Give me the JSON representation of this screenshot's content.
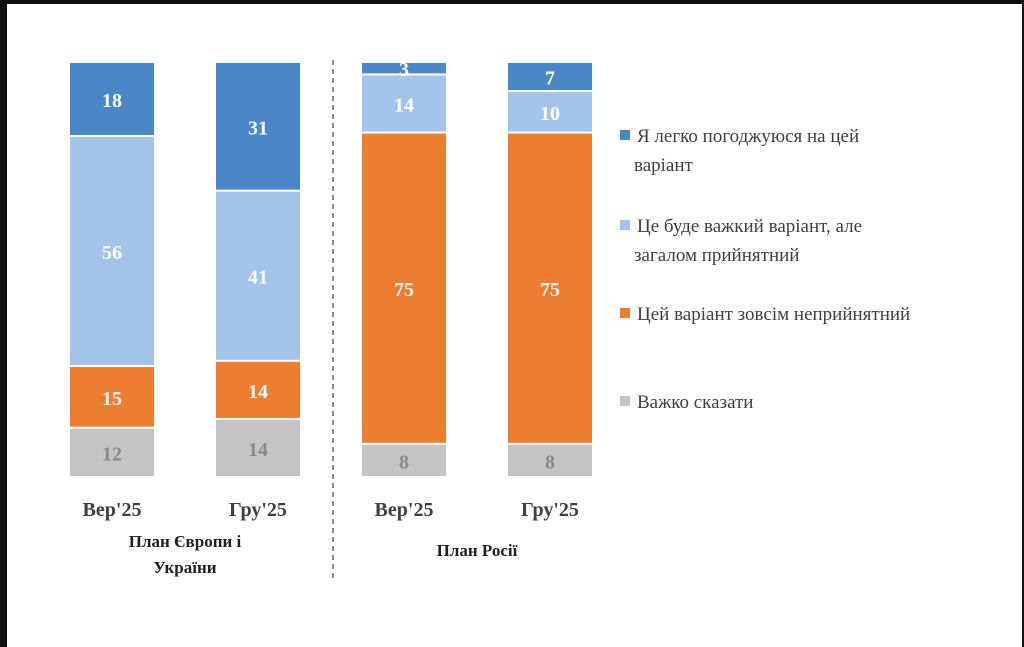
{
  "chart_data": {
    "type": "bar",
    "stacked": true,
    "percent": true,
    "categories": [
      "Вер'25",
      "Гру'25",
      "Вер'25",
      "Гру'25"
    ],
    "groups": [
      {
        "label_lines": [
          "План Європи і",
          "України"
        ],
        "categories": [
          0,
          1
        ]
      },
      {
        "label_lines": [
          "План Росії"
        ],
        "categories": [
          2,
          3
        ]
      }
    ],
    "series": [
      {
        "name": "Я легко погоджуюся на цей варіант",
        "legend_lines": [
          "Я легко погоджуюся на цей",
          "варіант"
        ],
        "color": "#4a86c8",
        "label_color": "#ffffff",
        "values": [
          18,
          31,
          3,
          7
        ]
      },
      {
        "name": "Це буде важкий варіант, але загалом прийнятний",
        "legend_lines": [
          "Це буде важкий варіант, але",
          "загалом прийнятний"
        ],
        "color": "#a3c4e8",
        "label_color": "#ffffff",
        "values": [
          56,
          41,
          14,
          10
        ]
      },
      {
        "name": "Цей варіант зовсім неприйнятний",
        "legend_lines": [
          "Цей варіант зовсім неприйнятний"
        ],
        "color": "#ed7d31",
        "label_color": "#ffffff",
        "values": [
          15,
          14,
          75,
          75
        ]
      },
      {
        "name": "Важко сказати",
        "legend_lines": [
          "Важко сказати"
        ],
        "color": "#c4c4c4",
        "label_color": "#8a8a8a",
        "values": [
          12,
          14,
          8,
          8
        ]
      }
    ],
    "ylim": [
      0,
      100
    ],
    "grid": false,
    "legend_position": "right",
    "group_divider": "dashed"
  }
}
